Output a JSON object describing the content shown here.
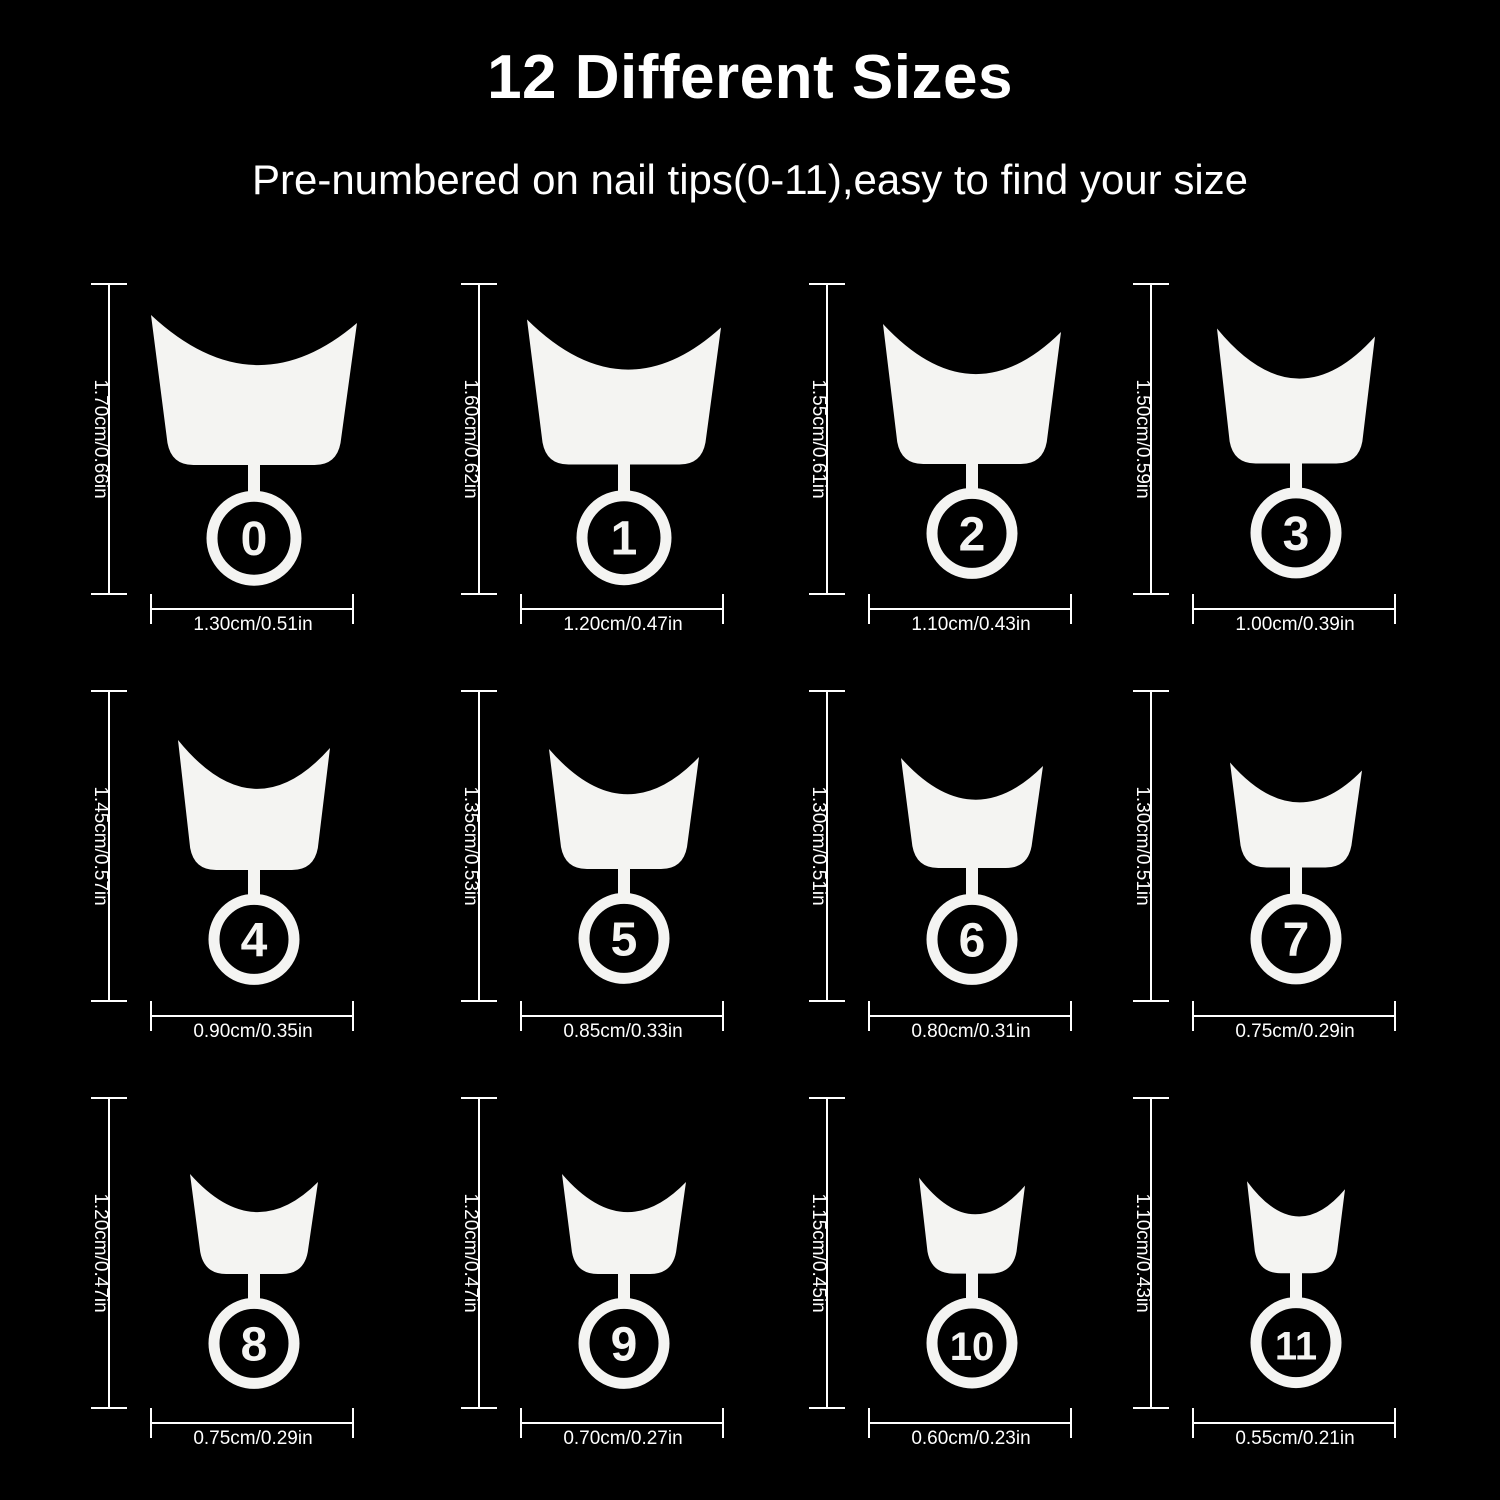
{
  "header": {
    "title": "12 Different Sizes",
    "subtitle": "Pre-numbered on nail tips(0-11),easy to find your size"
  },
  "tips": [
    {
      "number": "0",
      "length": "1.70cm/0.66in",
      "width": "1.30cm/0.51in"
    },
    {
      "number": "1",
      "length": "1.60cm/0.62in",
      "width": "1.20cm/0.47in"
    },
    {
      "number": "2",
      "length": "1.55cm/0.61in",
      "width": "1.10cm/0.43in"
    },
    {
      "number": "3",
      "length": "1.50cm/0.59in",
      "width": "1.00cm/0.39in"
    },
    {
      "number": "4",
      "length": "1.45cm/0.57in",
      "width": "0.90cm/0.35in"
    },
    {
      "number": "5",
      "length": "1.35cm/0.53in",
      "width": "0.85cm/0.33in"
    },
    {
      "number": "6",
      "length": "1.30cm/0.51in",
      "width": "0.80cm/0.31in"
    },
    {
      "number": "7",
      "length": "1.30cm/0.51in",
      "width": "0.75cm/0.29in"
    },
    {
      "number": "8",
      "length": "1.20cm/0.47in",
      "width": "0.75cm/0.29in"
    },
    {
      "number": "9",
      "length": "1.20cm/0.47in",
      "width": "0.70cm/0.27in"
    },
    {
      "number": "10",
      "length": "1.15cm/0.45in",
      "width": "0.60cm/0.23in"
    },
    {
      "number": "11",
      "length": "1.10cm/0.43in",
      "width": "0.55cm/0.21in"
    }
  ],
  "colors": {
    "background": "#000000",
    "tip": "#f4f4f2",
    "text": "#ffffff"
  }
}
